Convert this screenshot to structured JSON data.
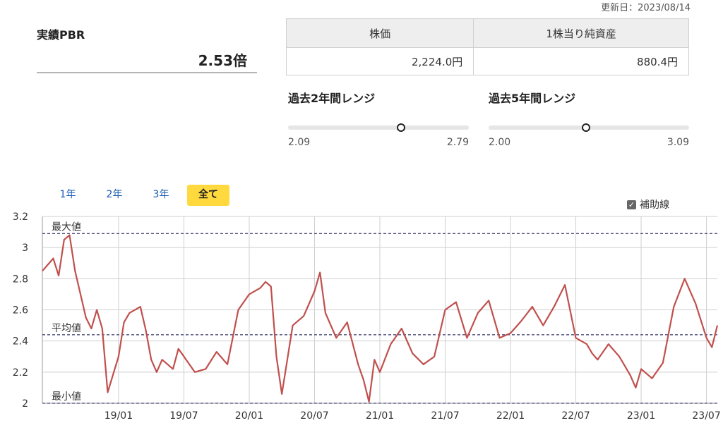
{
  "header": {
    "updated": "更新日：2023/08/14"
  },
  "pbr": {
    "title": "実績PBR",
    "value": "2.53倍"
  },
  "info_table": {
    "headers": [
      "株価",
      "1株当り純資産"
    ],
    "values": [
      "2,224.0円",
      "880.4円"
    ]
  },
  "ranges": [
    {
      "title": "過去2年間レンジ",
      "min_label": "2.09",
      "max_label": "2.79",
      "min": 2.09,
      "max": 2.79,
      "current": 2.53
    },
    {
      "title": "過去5年間レンジ",
      "min_label": "2.00",
      "max_label": "3.09",
      "min": 2.0,
      "max": 3.09,
      "current": 2.53
    }
  ],
  "tabs": [
    {
      "label": "1年",
      "active": false
    },
    {
      "label": "2年",
      "active": false
    },
    {
      "label": "3年",
      "active": false
    },
    {
      "label": "全て",
      "active": true
    }
  ],
  "aux_toggle": {
    "label": "補助線",
    "checked": true
  },
  "colors": {
    "line": "#c0504d",
    "ref_line": "#4b4b7a",
    "grid": "#cfcfcf",
    "accent": "#ffd93d",
    "tab_text": "#1a5ab4"
  },
  "chart_data": {
    "type": "line",
    "x_start": "2018/06",
    "x_end": "2023/08",
    "xticks": [
      "19/01",
      "19/07",
      "20/01",
      "20/07",
      "21/01",
      "21/07",
      "22/01",
      "22/07",
      "23/01",
      "23/07"
    ],
    "yticks": [
      "2",
      "2.2",
      "2.4",
      "2.6",
      "2.8",
      "3",
      "3.2"
    ],
    "ylim": [
      2.0,
      3.2
    ],
    "grid": true,
    "reference_lines": [
      {
        "label": "最大値",
        "value": 3.09
      },
      {
        "label": "平均値",
        "value": 2.44
      },
      {
        "label": "最小値",
        "value": 2.0
      }
    ],
    "series": [
      {
        "x": [
          "2018-06",
          "2018-07",
          "2018-07",
          "2018-08",
          "2018-08",
          "2018-09",
          "2018-10",
          "2018-10",
          "2018-11",
          "2018-11",
          "2018-12",
          "2019-01",
          "2019-01",
          "2019-02",
          "2019-03",
          "2019-03",
          "2019-04",
          "2019-04",
          "2019-05",
          "2019-06",
          "2019-06",
          "2019-07",
          "2019-08",
          "2019-09",
          "2019-10",
          "2019-11",
          "2019-12",
          "2020-01",
          "2020-02",
          "2020-02",
          "2020-03",
          "2020-03",
          "2020-04",
          "2020-05",
          "2020-06",
          "2020-07",
          "2020-07",
          "2020-08",
          "2020-09",
          "2020-10",
          "2020-11",
          "2020-11",
          "2020-12",
          "2020-12",
          "2021-01",
          "2021-02",
          "2021-03",
          "2021-04",
          "2021-05",
          "2021-06",
          "2021-07",
          "2021-08",
          "2021-09",
          "2021-10",
          "2021-11",
          "2021-12",
          "2022-01",
          "2022-02",
          "2022-03",
          "2022-04",
          "2022-05",
          "2022-06",
          "2022-07",
          "2022-08",
          "2022-08",
          "2022-09",
          "2022-10",
          "2022-11",
          "2022-12",
          "2022-12",
          "2023-01",
          "2023-02",
          "2023-03",
          "2023-04",
          "2023-05",
          "2023-06",
          "2023-07",
          "2023-07",
          "2023-08"
        ],
        "y": [
          2.85,
          2.93,
          2.82,
          3.05,
          3.08,
          2.85,
          2.55,
          2.48,
          2.6,
          2.48,
          2.07,
          2.3,
          2.52,
          2.58,
          2.62,
          2.47,
          2.28,
          2.2,
          2.28,
          2.22,
          2.35,
          2.3,
          2.2,
          2.22,
          2.33,
          2.25,
          2.6,
          2.7,
          2.74,
          2.78,
          2.75,
          2.3,
          2.06,
          2.5,
          2.56,
          2.72,
          2.84,
          2.58,
          2.42,
          2.52,
          2.25,
          2.15,
          2.01,
          2.28,
          2.2,
          2.38,
          2.48,
          2.32,
          2.25,
          2.3,
          2.6,
          2.65,
          2.42,
          2.58,
          2.66,
          2.42,
          2.45,
          2.53,
          2.62,
          2.5,
          2.62,
          2.76,
          2.42,
          2.38,
          2.32,
          2.28,
          2.38,
          2.3,
          2.18,
          2.1,
          2.22,
          2.16,
          2.26,
          2.62,
          2.8,
          2.64,
          2.42,
          2.36,
          2.5
        ]
      }
    ]
  }
}
